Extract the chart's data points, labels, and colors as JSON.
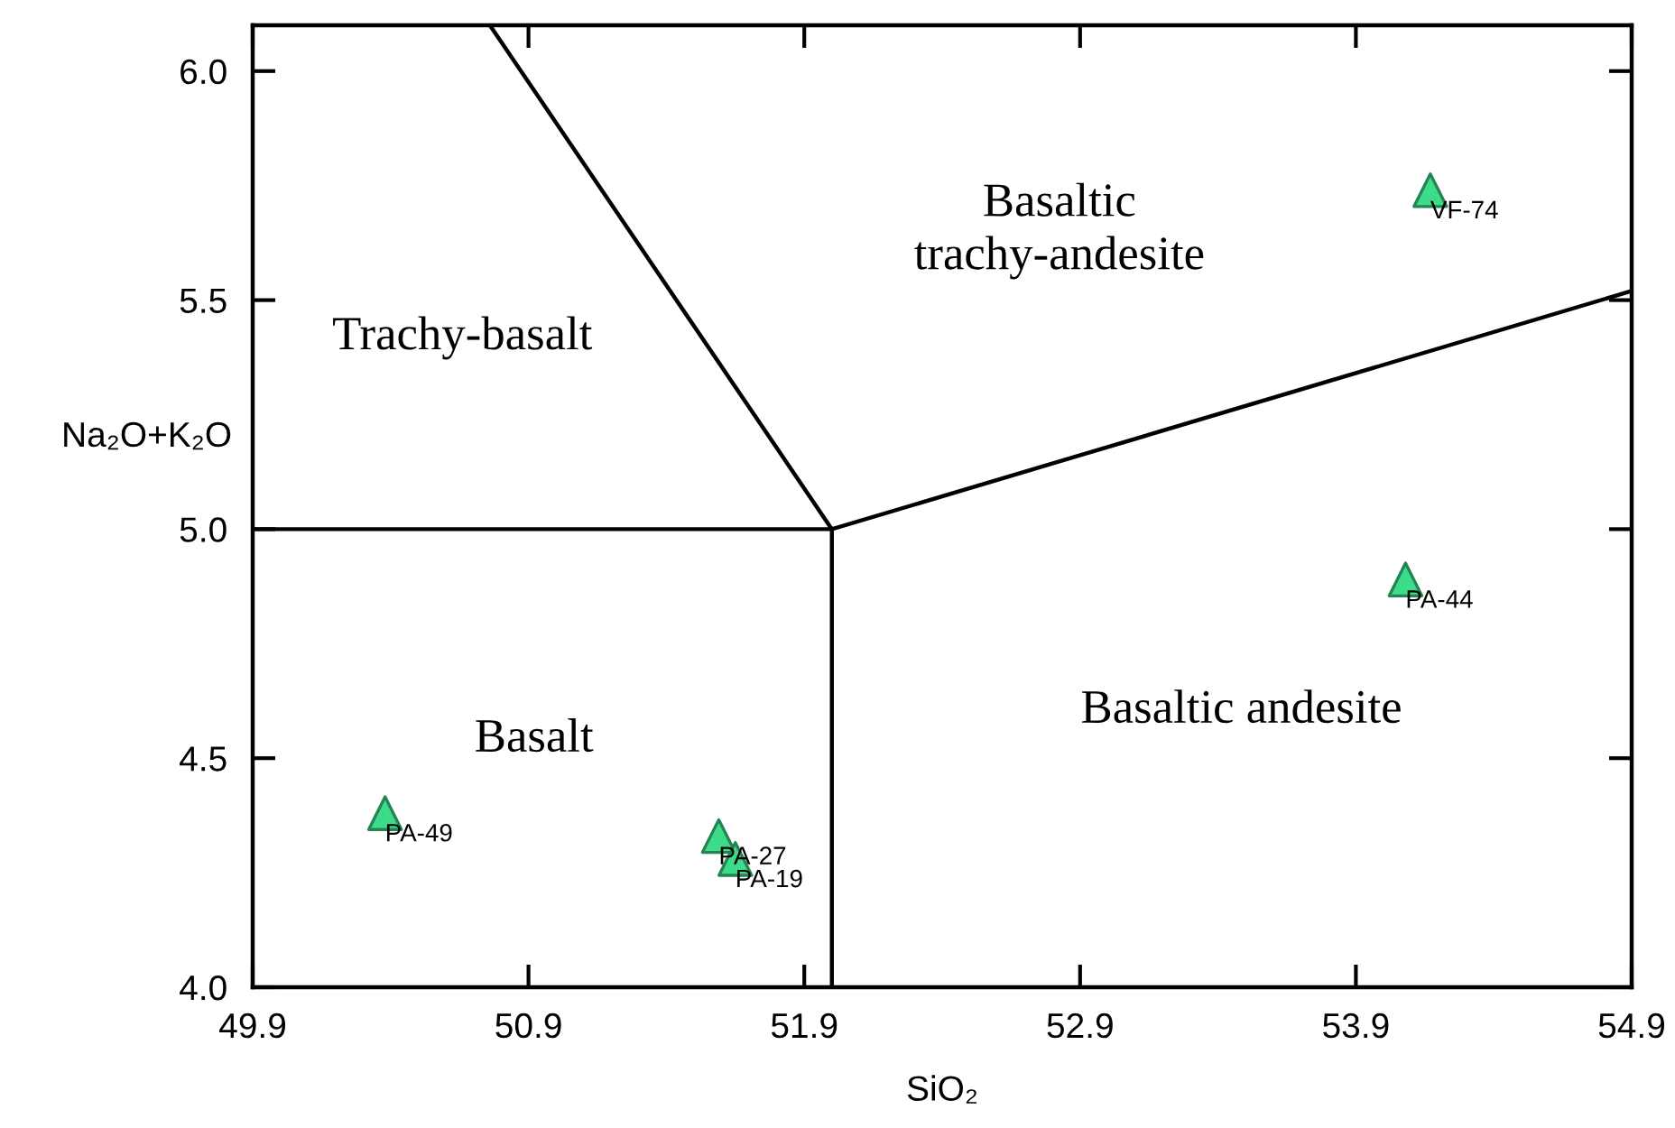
{
  "chart_data": {
    "type": "scatter",
    "xlabel": "SiO₂",
    "ylabel": "Na₂O+K₂O",
    "xlim": [
      49.9,
      54.9
    ],
    "ylim": [
      4.0,
      6.1
    ],
    "xticks": [
      49.9,
      50.9,
      51.9,
      52.9,
      53.9,
      54.9
    ],
    "yticks": [
      {
        "value": 4.0,
        "label": "4.0"
      },
      {
        "value": 4.5,
        "label": "4.5"
      },
      {
        "value": 5.0,
        "label": "5.0"
      },
      {
        "value": 5.5,
        "label": "5.5"
      },
      {
        "value": 6.0,
        "label": "6.0"
      }
    ],
    "grid": false,
    "series": [
      {
        "marker": "triangle",
        "color": "#3ddc8a",
        "x": [
          50.38,
          51.59,
          51.65,
          54.08,
          54.17
        ],
        "values": [
          4.38,
          4.33,
          4.28,
          4.89,
          5.74
        ]
      },
      {
        "type": "line",
        "color": "#000000",
        "line_style": "solid",
        "marker": "none",
        "x": [
          49.9,
          52.0,
          54.9,
          null,
          52.0,
          52.0,
          50.76
        ],
        "values": [
          5.0,
          5.0,
          5.52,
          null,
          4.0,
          5.0,
          6.1
        ]
      }
    ],
    "annotations": [
      {
        "text": "PA-49",
        "x": 50.38,
        "y": 4.38
      },
      {
        "text": "PA-27",
        "x": 51.59,
        "y": 4.33
      },
      {
        "text": "PA-19",
        "x": 51.65,
        "y": 4.28
      },
      {
        "text": "PA-44",
        "x": 54.08,
        "y": 4.89
      },
      {
        "text": "VF-74",
        "x": 54.17,
        "y": 5.74
      },
      "Trachy-basalt",
      "Basaltic\ntrachy-andesite",
      "Basalt",
      "Basaltic andesite"
    ]
  }
}
